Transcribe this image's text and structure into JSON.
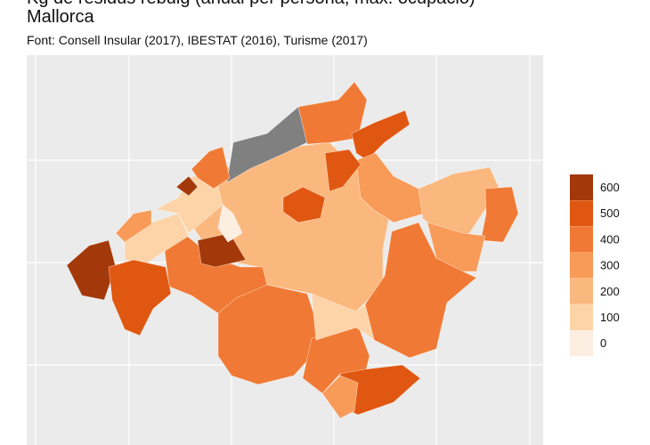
{
  "header": {
    "title": "Kg de residus rebuig (anual per persona, màx. ocupació)",
    "subtitle": "Mallorca",
    "source": "Font: Consell Insular (2017), IBESTAT (2016), Turisme (2017)"
  },
  "legend": {
    "items": [
      {
        "label": "600",
        "color": "#a3390a"
      },
      {
        "label": "500",
        "color": "#e05712"
      },
      {
        "label": "400",
        "color": "#f07a35"
      },
      {
        "label": "300",
        "color": "#f89a58"
      },
      {
        "label": "200",
        "color": "#fbb87e"
      },
      {
        "label": "100",
        "color": "#fdd3a8"
      },
      {
        "label": "0",
        "color": "#fdeee2"
      }
    ]
  }
}
